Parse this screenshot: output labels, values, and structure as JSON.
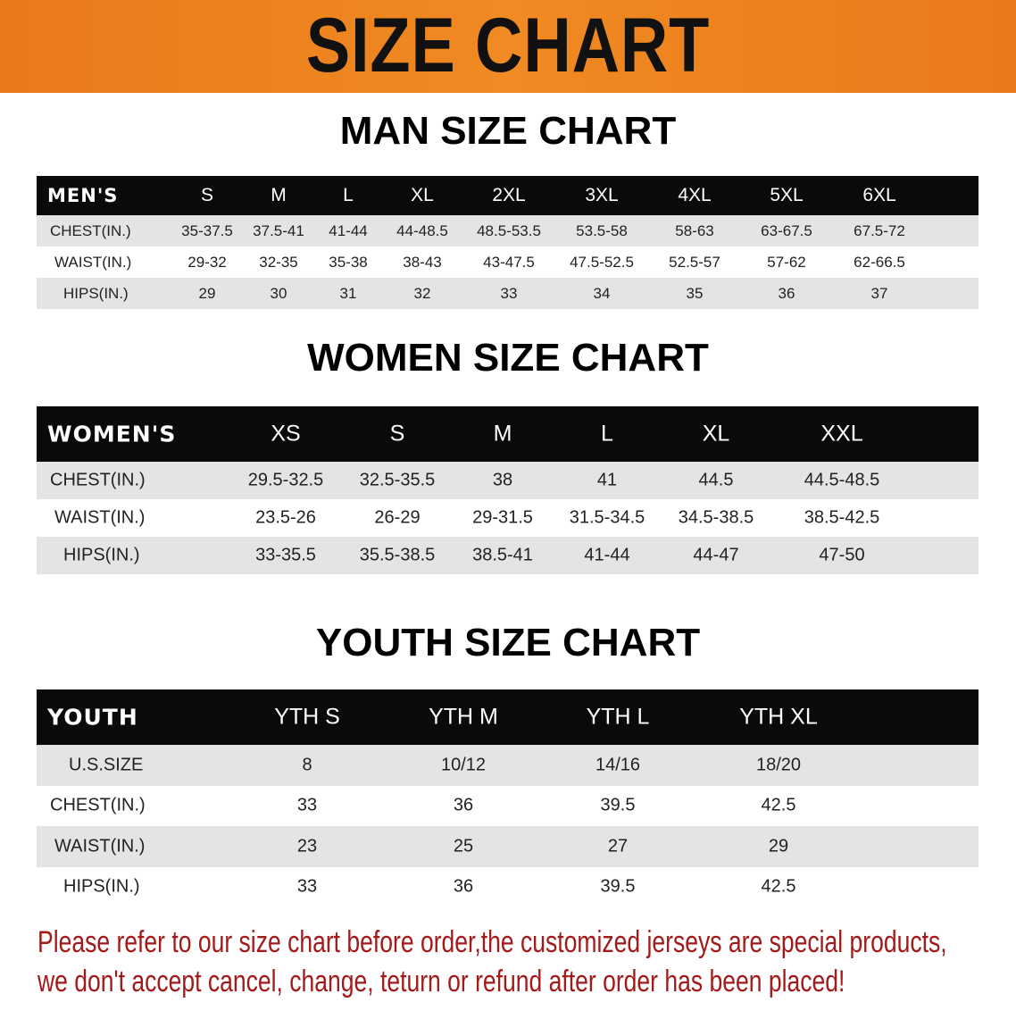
{
  "banner": {
    "title": "SIZE CHART",
    "color": "#ec801e"
  },
  "men": {
    "title": "MAN SIZE CHART",
    "header": [
      "MEN'S",
      "S",
      "M",
      "L",
      "XL",
      "2XL",
      "3XL",
      "4XL",
      "5XL",
      "6XL"
    ],
    "rows": [
      [
        "CHEST(IN.)",
        "35-37.5",
        "37.5-41",
        "41-44",
        "44-48.5",
        "48.5-53.5",
        "53.5-58",
        "58-63",
        "63-67.5",
        "67.5-72"
      ],
      [
        "WAIST(IN.)",
        "29-32",
        "32-35",
        "35-38",
        "38-43",
        "43-47.5",
        "47.5-52.5",
        "52.5-57",
        "57-62",
        "62-66.5"
      ],
      [
        "HIPS(IN.)",
        "29",
        "30",
        "31",
        "32",
        "33",
        "34",
        "35",
        "36",
        "37"
      ]
    ]
  },
  "women": {
    "title": "WOMEN SIZE CHART",
    "header": [
      "WOMEN'S",
      "XS",
      "S",
      "M",
      "L",
      "XL",
      "XXL"
    ],
    "rows": [
      [
        "CHEST(IN.)",
        "29.5-32.5",
        "32.5-35.5",
        "38",
        "41",
        "44.5",
        "44.5-48.5"
      ],
      [
        "WAIST(IN.)",
        "23.5-26",
        "26-29",
        "29-31.5",
        "31.5-34.5",
        "34.5-38.5",
        "38.5-42.5"
      ],
      [
        "HIPS(IN.)",
        "33-35.5",
        "35.5-38.5",
        "38.5-41",
        "41-44",
        "44-47",
        "47-50"
      ]
    ]
  },
  "youth": {
    "title": "YOUTH SIZE CHART",
    "header": [
      "YOUTH",
      "YTH S",
      "YTH M",
      "YTH L",
      "YTH XL"
    ],
    "rows": [
      [
        "U.S.SIZE",
        "8",
        "10/12",
        "14/16",
        "18/20"
      ],
      [
        "CHEST(IN.)",
        "33",
        "36",
        "39.5",
        "42.5"
      ],
      [
        "WAIST(IN.)",
        "23",
        "25",
        "27",
        "29"
      ],
      [
        "HIPS(IN.)",
        "33",
        "36",
        "39.5",
        "42.5"
      ]
    ]
  },
  "notice": {
    "line1": "Please refer to our size chart before order,the customized jerseys are special products,",
    "line2": "we don't accept cancel, change, teturn or refund after order has been placed!",
    "color": "#a31a1a"
  }
}
